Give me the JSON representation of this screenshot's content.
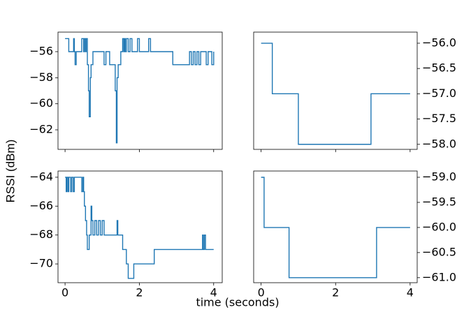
{
  "xlabel": "time (seconds)",
  "ylabel": "RSSI (dBm)",
  "chart_data": [
    {
      "type": "line",
      "step": "post",
      "color": "#1f77b4",
      "yaxis_side": "left",
      "xtick_labels": false,
      "x": [
        0,
        0.05,
        0.1,
        0.2,
        0.23,
        0.25,
        0.27,
        0.3,
        0.4,
        0.45,
        0.5,
        0.52,
        0.55,
        0.57,
        0.6,
        0.63,
        0.65,
        0.68,
        0.7,
        0.75,
        1.0,
        1.05,
        1.1,
        1.15,
        1.2,
        1.3,
        1.35,
        1.38,
        1.4,
        1.43,
        1.5,
        1.55,
        1.58,
        1.6,
        1.62,
        1.65,
        1.7,
        1.75,
        1.8,
        1.9,
        1.95,
        2.0,
        2.2,
        2.25,
        2.3,
        2.6,
        2.9,
        3.3,
        3.35,
        3.4,
        3.45,
        3.5,
        3.55,
        3.6,
        3.65,
        3.75,
        3.8,
        3.85,
        3.9,
        3.95,
        4.0
      ],
      "values": [
        -55,
        -55,
        -56,
        -56,
        -55,
        -56,
        -57,
        -56,
        -56,
        -55,
        -56,
        -55,
        -56,
        -55,
        -57,
        -59,
        -61,
        -58,
        -57,
        -56,
        -56,
        -57,
        -56,
        -56,
        -57,
        -57,
        -59,
        -63,
        -58,
        -57,
        -56,
        -55,
        -56,
        -55,
        -56,
        -55,
        -56,
        -55,
        -56,
        -56,
        -55,
        -56,
        -56,
        -55,
        -56,
        -56,
        -57,
        -57,
        -56,
        -57,
        -56,
        -57,
        -56,
        -57,
        -56,
        -56,
        -57,
        -56,
        -56,
        -57,
        -56
      ],
      "xlim": [
        -0.19,
        4.23
      ],
      "xticks": [
        0,
        2,
        4
      ],
      "ylim": [
        -63.5,
        -54.5
      ],
      "yticks": [
        {
          "value": -56,
          "label": "−56"
        },
        {
          "value": -58,
          "label": "−58"
        },
        {
          "value": -60,
          "label": "−60"
        },
        {
          "value": -62,
          "label": "−62"
        }
      ]
    },
    {
      "type": "line",
      "step": "post",
      "color": "#1f77b4",
      "yaxis_side": "right",
      "xtick_labels": false,
      "x": [
        0,
        0.3,
        1.0,
        2.95,
        4.0
      ],
      "values": [
        -56,
        -57,
        -58,
        -57,
        -57
      ],
      "xlim": [
        -0.2,
        4.19
      ],
      "xticks": [
        0,
        2,
        4
      ],
      "ylim": [
        -58.1,
        -55.78
      ],
      "yticks": [
        {
          "value": -56,
          "label": "−56.0"
        },
        {
          "value": -56.5,
          "label": "−56.5"
        },
        {
          "value": -57,
          "label": "−57.0"
        },
        {
          "value": -57.5,
          "label": "−57.5"
        },
        {
          "value": -58,
          "label": "−58.0"
        }
      ]
    },
    {
      "type": "line",
      "step": "post",
      "color": "#1f77b4",
      "yaxis_side": "left",
      "xtick_labels": true,
      "x": [
        0,
        0.03,
        0.05,
        0.08,
        0.1,
        0.15,
        0.18,
        0.22,
        0.25,
        0.45,
        0.48,
        0.5,
        0.52,
        0.55,
        0.58,
        0.6,
        0.65,
        0.7,
        0.72,
        0.75,
        0.8,
        0.85,
        0.9,
        0.95,
        1.0,
        1.05,
        1.4,
        1.42,
        1.55,
        1.65,
        1.7,
        1.85,
        2.4,
        3.7,
        3.72,
        3.75,
        3.78,
        4.0
      ],
      "values": [
        -64,
        -65,
        -64,
        -65,
        -64,
        -65,
        -64,
        -65,
        -64,
        -65,
        -64,
        -65,
        -66,
        -67,
        -68,
        -69,
        -68,
        -66,
        -67,
        -68,
        -67,
        -68,
        -67,
        -68,
        -67,
        -68,
        -67,
        -68,
        -69,
        -70,
        -71,
        -70,
        -69,
        -68,
        -69,
        -68,
        -69,
        -69
      ],
      "xlim": [
        -0.19,
        4.23
      ],
      "xticks": [
        0,
        2,
        4
      ],
      "ylim": [
        -71.3,
        -63.57
      ],
      "yticks": [
        {
          "value": -64,
          "label": "−64"
        },
        {
          "value": -66,
          "label": "−66"
        },
        {
          "value": -68,
          "label": "−68"
        },
        {
          "value": -70,
          "label": "−70"
        }
      ]
    },
    {
      "type": "line",
      "step": "post",
      "color": "#1f77b4",
      "yaxis_side": "right",
      "xtick_labels": true,
      "x": [
        0,
        0.08,
        0.75,
        3.1,
        4.0
      ],
      "values": [
        -59,
        -60,
        -61,
        -60,
        -60
      ],
      "xlim": [
        -0.2,
        4.19
      ],
      "xticks": [
        0,
        2,
        4
      ],
      "ylim": [
        -61.1,
        -58.875
      ],
      "yticks": [
        {
          "value": -59,
          "label": "−59.0"
        },
        {
          "value": -59.5,
          "label": "−59.5"
        },
        {
          "value": -60,
          "label": "−60.0"
        },
        {
          "value": -60.5,
          "label": "−60.5"
        },
        {
          "value": -61,
          "label": "−61.0"
        }
      ]
    }
  ]
}
